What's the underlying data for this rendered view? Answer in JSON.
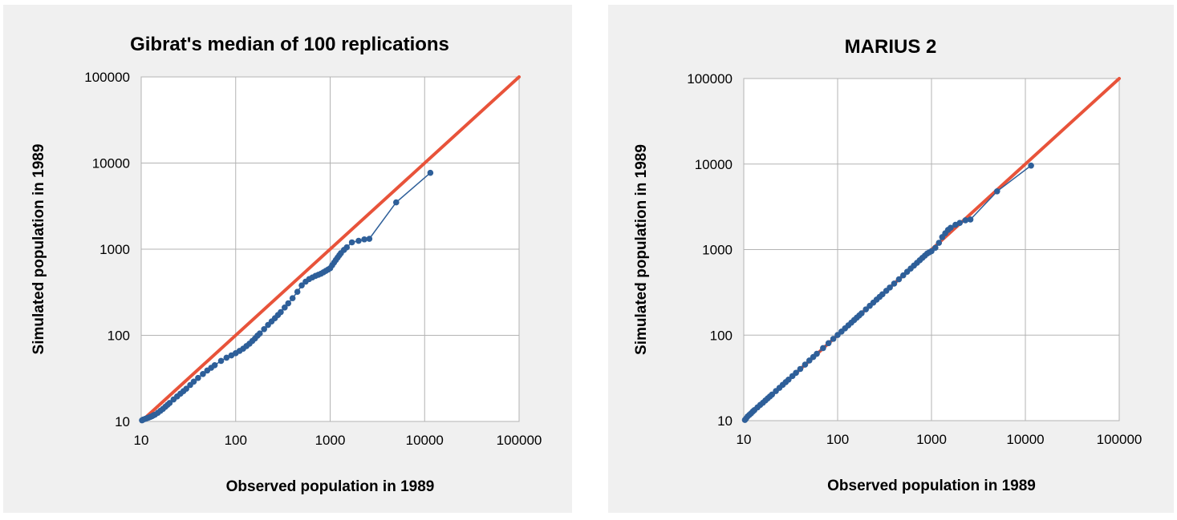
{
  "colors": {
    "background": "#f0f0f0",
    "plot_background": "#ffffff",
    "grid": "#b3b3b3",
    "reference_line": "#e8533a",
    "data_series": "#2e5f99"
  },
  "chart_data": [
    {
      "type": "scatter",
      "title": "Gibrat's median of 100 replications",
      "xlabel": "Observed population in 1989",
      "ylabel": "Simulated population in 1989",
      "xscale": "log",
      "yscale": "log",
      "xlim": [
        10,
        100000
      ],
      "ylim": [
        10,
        100000
      ],
      "xticks": [
        "10",
        "100",
        "1000",
        "10000",
        "100000"
      ],
      "yticks": [
        "10",
        "100",
        "1000",
        "10000",
        "100000"
      ],
      "grid": true,
      "legend": "none",
      "series": [
        {
          "kind": "reference_line",
          "color": "#e8533a",
          "x": [
            10,
            100000
          ],
          "y": [
            10,
            100000
          ]
        },
        {
          "kind": "points_connected",
          "color": "#2e5f99",
          "x": [
            10.2,
            10.5,
            11,
            11.5,
            12,
            12.5,
            13,
            13.5,
            14,
            15,
            16,
            17,
            18,
            19,
            20,
            22,
            24,
            26,
            28,
            30,
            33,
            36,
            40,
            45,
            50,
            55,
            60,
            70,
            80,
            90,
            100,
            110,
            120,
            130,
            140,
            150,
            160,
            170,
            180,
            200,
            220,
            240,
            260,
            280,
            300,
            330,
            360,
            400,
            450,
            500,
            550,
            600,
            650,
            700,
            750,
            800,
            850,
            900,
            950,
            1000,
            1050,
            1100,
            1150,
            1200,
            1250,
            1300,
            1400,
            1500,
            1700,
            2000,
            2300,
            2600,
            5000,
            11500
          ],
          "y": [
            10.3,
            10.5,
            10.7,
            10.9,
            11.1,
            11.3,
            11.5,
            11.8,
            12,
            12.6,
            13.3,
            14,
            14.8,
            15.6,
            16.4,
            18,
            19.5,
            21,
            22.5,
            24,
            26.5,
            29,
            32,
            35.5,
            39,
            42,
            45,
            50.5,
            55,
            58.5,
            62,
            66,
            70,
            75,
            80,
            86,
            92,
            99,
            105,
            118,
            132,
            145,
            158,
            172,
            186,
            210,
            235,
            270,
            320,
            380,
            420,
            450,
            470,
            490,
            505,
            520,
            540,
            560,
            580,
            600,
            650,
            700,
            750,
            800,
            850,
            900,
            980,
            1050,
            1200,
            1250,
            1300,
            1320,
            3500,
            7700
          ]
        }
      ]
    },
    {
      "type": "scatter",
      "title": "MARIUS 2",
      "xlabel": "Observed population in 1989",
      "ylabel": "Simulated population in 1989",
      "xscale": "log",
      "yscale": "log",
      "xlim": [
        10,
        100000
      ],
      "ylim": [
        10,
        100000
      ],
      "xticks": [
        "10",
        "100",
        "1000",
        "10000",
        "100000"
      ],
      "yticks": [
        "10",
        "100",
        "1000",
        "10000",
        "100000"
      ],
      "grid": true,
      "legend": "none",
      "series": [
        {
          "kind": "reference_line",
          "color": "#e8533a",
          "x": [
            10,
            100000
          ],
          "y": [
            10,
            100000
          ]
        },
        {
          "kind": "points_connected",
          "color": "#2e5f99",
          "x": [
            10.3,
            10.6,
            11,
            11.5,
            12,
            12.5,
            13,
            14,
            15,
            16,
            17,
            18,
            19,
            20,
            22,
            24,
            26,
            28,
            30,
            33,
            36,
            40,
            45,
            50,
            55,
            60,
            70,
            80,
            90,
            100,
            110,
            120,
            130,
            140,
            150,
            160,
            170,
            180,
            200,
            220,
            240,
            260,
            280,
            300,
            330,
            360,
            400,
            450,
            500,
            550,
            600,
            650,
            700,
            750,
            800,
            850,
            900,
            950,
            1000,
            1100,
            1200,
            1300,
            1400,
            1500,
            1600,
            1800,
            2000,
            2300,
            2600,
            5000,
            11500
          ],
          "y": [
            10.2,
            10.6,
            11.2,
            11.7,
            12.2,
            12.8,
            13.3,
            14.3,
            15.3,
            16.2,
            17.2,
            18.2,
            19.2,
            20.2,
            22.2,
            24.2,
            26.2,
            28.2,
            30.2,
            33.2,
            36.2,
            40.2,
            45.2,
            50.5,
            55.5,
            60.5,
            70.5,
            80.5,
            90.5,
            100.5,
            110,
            120,
            130,
            140,
            150,
            160,
            170,
            180,
            200,
            220,
            240,
            260,
            280,
            300,
            330,
            360,
            400,
            450,
            500,
            550,
            600,
            650,
            700,
            750,
            800,
            850,
            900,
            930,
            960,
            1050,
            1200,
            1400,
            1550,
            1700,
            1800,
            1950,
            2050,
            2200,
            2250,
            4800,
            9600
          ]
        }
      ]
    }
  ]
}
